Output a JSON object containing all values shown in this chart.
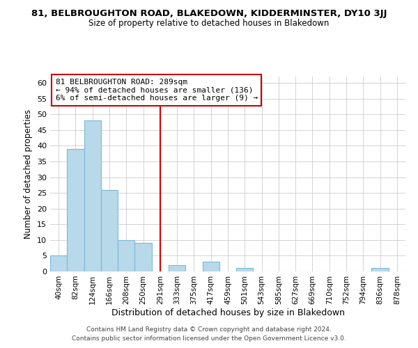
{
  "title": "81, BELBROUGHTON ROAD, BLAKEDOWN, KIDDERMINSTER, DY10 3JJ",
  "subtitle": "Size of property relative to detached houses in Blakedown",
  "xlabel": "Distribution of detached houses by size in Blakedown",
  "ylabel": "Number of detached properties",
  "footer_line1": "Contains HM Land Registry data © Crown copyright and database right 2024.",
  "footer_line2": "Contains public sector information licensed under the Open Government Licence v3.0.",
  "bar_labels": [
    "40sqm",
    "82sqm",
    "124sqm",
    "166sqm",
    "208sqm",
    "250sqm",
    "291sqm",
    "333sqm",
    "375sqm",
    "417sqm",
    "459sqm",
    "501sqm",
    "543sqm",
    "585sqm",
    "627sqm",
    "669sqm",
    "710sqm",
    "752sqm",
    "794sqm",
    "836sqm",
    "878sqm"
  ],
  "bar_values": [
    5,
    39,
    48,
    26,
    10,
    9,
    0,
    2,
    0,
    3,
    0,
    1,
    0,
    0,
    0,
    0,
    0,
    0,
    0,
    1,
    0
  ],
  "bar_color": "#b8d9ea",
  "bar_edge_color": "#7ab8d4",
  "vline_x_label": "291sqm",
  "vline_color": "#cc0000",
  "annotation_title": "81 BELBROUGHTON ROAD: 289sqm",
  "annotation_line2": "← 94% of detached houses are smaller (136)",
  "annotation_line3": "6% of semi-detached houses are larger (9) →",
  "annotation_box_edge_color": "#cc0000",
  "ylim": [
    0,
    62
  ],
  "yticks": [
    0,
    5,
    10,
    15,
    20,
    25,
    30,
    35,
    40,
    45,
    50,
    55,
    60
  ],
  "background_color": "#ffffff",
  "grid_color": "#cccccc"
}
